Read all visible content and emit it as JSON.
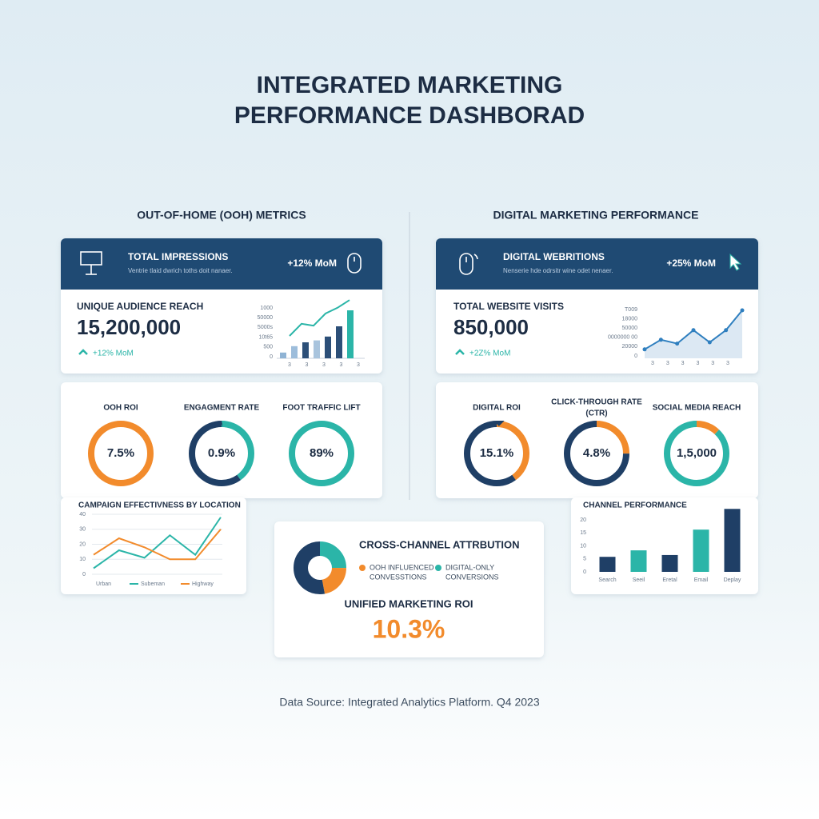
{
  "title": [
    "INTEGRATED MARKETING",
    "PERFORMANCE DASHBORAD"
  ],
  "ooh": {
    "heading": "OUT-OF-HOME (OOH) METRICS",
    "banner": {
      "title": "TOTAL IMPRESSIONS",
      "subtitle": "Ventrie tlaid dwrich toths doit nanaer.",
      "change": "+12% MoM"
    },
    "reach": {
      "label": "UNIQUE AUDIENCE REACH",
      "value": "15,200,000",
      "change": "+12% MoM"
    },
    "mini_chart": {
      "ylabels": [
        "1000",
        "50000",
        "5000s",
        "10t65",
        "500",
        "0"
      ],
      "xlabels": [
        "3",
        "3",
        "3",
        "3",
        "3"
      ],
      "ylim": [
        0,
        100
      ],
      "bars": [
        9,
        19,
        25,
        28,
        34,
        50,
        75
      ],
      "bar_colors": [
        "#8fb3d4",
        "#9dbddb",
        "#2c4f78",
        "#a9c4dd",
        "#2c4f78",
        "#2c4f78",
        "#2bb5a8"
      ],
      "line": [
        35,
        54,
        51,
        70,
        79,
        91
      ],
      "line_color": "#2bb5a8"
    },
    "gauges": [
      {
        "label": [
          "OOH ROI"
        ],
        "value_label": "7.5%",
        "segments": [
          {
            "color": "#f28b2c",
            "share": 100
          }
        ]
      },
      {
        "label": [
          "ENGAGMENT RATE"
        ],
        "value_label": "0.9%",
        "segments": [
          {
            "color": "#2bb5a8",
            "share": 40
          },
          {
            "color": "#1f3f66",
            "share": 60
          }
        ]
      },
      {
        "label": [
          "FOOT TRAFFIC LIFT"
        ],
        "value_label": "89%",
        "segments": [
          {
            "color": "#2bb5a8",
            "share": 100
          }
        ]
      }
    ],
    "campaign": {
      "title": "CAMPAIGN EFFECTIVNESS BY LOCATION",
      "ylim": [
        0,
        40
      ],
      "yticks": [
        0,
        10,
        20,
        30,
        40
      ],
      "series": [
        {
          "name": "Urban",
          "color": "#1f3f66",
          "values": null
        },
        {
          "name": "Subeman",
          "color": "#2bb5a8",
          "values": [
            4,
            16,
            11,
            26,
            13,
            38
          ]
        },
        {
          "name": "Highway",
          "color": "#f28b2c",
          "values": [
            13,
            24,
            18,
            10,
            10,
            30
          ]
        }
      ]
    }
  },
  "digital": {
    "heading": "DIGITAL MARKETING PERFORMANCE",
    "banner": {
      "title": "DIGITAL WEBRITIONS",
      "subtitle": "Nenserie hde odrsitr wine odet nenaer.",
      "change": "+25% MoM"
    },
    "visits": {
      "label": "TOTAL WEBSITE VISITS",
      "value": "850,000",
      "change": "+2Z% MoM"
    },
    "mini_chart": {
      "ylabels": [
        "T009",
        "18000",
        "50000",
        "0000000 00",
        "20000",
        "0"
      ],
      "xlabels": [
        "3",
        "3",
        "3",
        "3",
        "3",
        "3"
      ],
      "ylim": [
        0,
        100
      ],
      "line": [
        14,
        29,
        23,
        44,
        25,
        44,
        75
      ],
      "line_color": "#2f7fbf",
      "area_color": "#dce8f3"
    },
    "gauges": [
      {
        "label": [
          "DIGITAL ROI"
        ],
        "value_label": "15.1%",
        "segments": [
          {
            "color": "#f28b2c",
            "share": 40
          },
          {
            "color": "#1f3f66",
            "share": 60
          }
        ]
      },
      {
        "label": [
          "CLICK-THROUGH RATE",
          "(CTR)"
        ],
        "value_label": "4.8%",
        "segments": [
          {
            "color": "#f28b2c",
            "share": 25
          },
          {
            "color": "#1f3f66",
            "share": 75
          }
        ]
      },
      {
        "label": [
          "SOCIAL MEDIA REACH"
        ],
        "value_label": "1,5,000",
        "segments": [
          {
            "color": "#f28b2c",
            "share": 12
          },
          {
            "color": "#2bb5a8",
            "share": 88
          }
        ]
      }
    ],
    "channel": {
      "title": "CHANNEL PERFORMANCE",
      "categories": [
        "Search",
        "Seeil",
        "Eretal",
        "Email",
        "Deplay"
      ],
      "values": [
        5.8,
        8.3,
        6.5,
        16.3,
        24.3
      ],
      "colors": [
        "#1f3f66",
        "#2bb5a8",
        "#1f3f66",
        "#2bb5a8",
        "#1f3f66"
      ],
      "ylim": [
        0,
        25
      ],
      "yticks": [
        0,
        5,
        10,
        15,
        20
      ]
    }
  },
  "attribution": {
    "title": "CROSS-CHANNEL ATTRBUTION",
    "segments": [
      {
        "name": [
          "DIGITAL-ONLY",
          "CONVERSIONS"
        ],
        "color": "#2bb5a8",
        "share": 25
      },
      {
        "name": [
          "OOH INFLUENCED",
          "CONVESSTIONS"
        ],
        "color": "#f28b2c",
        "share": 22
      },
      {
        "name": null,
        "color": "#1f3f66",
        "share": 53
      }
    ],
    "roi_label": "UNIFIED MARKETING ROI",
    "roi_value": "10.3%"
  },
  "footer": "Data Source: Integrated Analytics Platform. Q4 2023"
}
